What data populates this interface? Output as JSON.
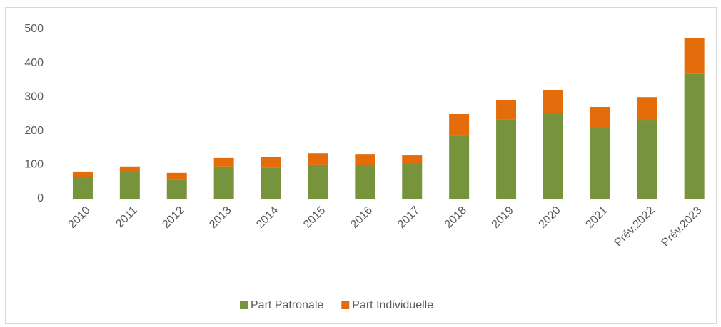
{
  "chart_data": {
    "type": "bar",
    "stacked": true,
    "categories": [
      "2010",
      "2011",
      "2012",
      "2013",
      "2014",
      "2015",
      "2016",
      "2017",
      "2018",
      "2019",
      "2020",
      "2021",
      "Prév.2022",
      "Prév.2023"
    ],
    "series": [
      {
        "name": "Part Patronale",
        "color": "#77933c",
        "values": [
          65,
          78,
          57,
          95,
          92,
          101,
          99,
          105,
          185,
          235,
          254,
          208,
          231,
          368
        ]
      },
      {
        "name": "Part Individuelle",
        "color": "#e46c0a",
        "values": [
          15,
          17,
          19,
          25,
          32,
          33,
          33,
          23,
          65,
          55,
          67,
          63,
          69,
          105
        ]
      }
    ],
    "ylim": [
      0,
      500
    ],
    "yticks": [
      0,
      100,
      200,
      300,
      400,
      500
    ],
    "grid": false,
    "legend": "bottom"
  }
}
